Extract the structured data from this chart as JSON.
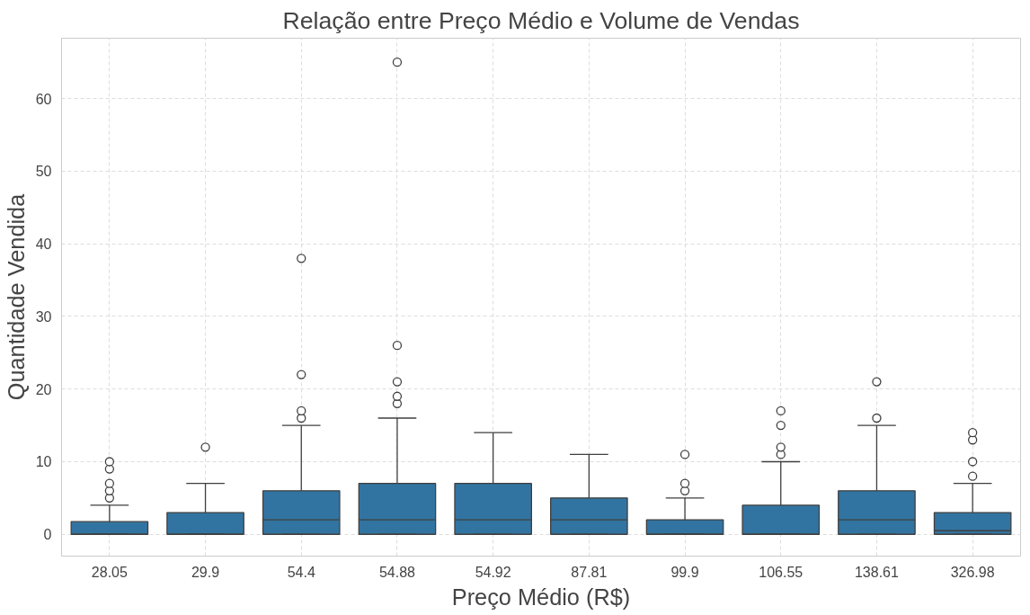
{
  "chart_data": {
    "type": "box",
    "title": "Relação entre Preço Médio e Volume de Vendas",
    "xlabel": "Preço Médio (R$)",
    "ylabel": "Quantidade Vendida",
    "categories": [
      "28.05",
      "29.9",
      "54.4",
      "54.88",
      "54.92",
      "87.81",
      "99.9",
      "106.55",
      "138.61",
      "326.98"
    ],
    "series": [
      {
        "color": "#3274a1",
        "boxes": [
          {
            "low": 0,
            "q1": 0,
            "median": 0,
            "q3": 1.75,
            "high": 4,
            "outliers": [
              5,
              6,
              7,
              9,
              10
            ]
          },
          {
            "low": 0,
            "q1": 0,
            "median": 0,
            "q3": 3,
            "high": 7,
            "outliers": [
              12
            ]
          },
          {
            "low": 0,
            "q1": 0,
            "median": 2,
            "q3": 6,
            "high": 15,
            "outliers": [
              16,
              17,
              22,
              38
            ]
          },
          {
            "low": 0,
            "q1": 0,
            "median": 2,
            "q3": 7,
            "high": 16,
            "outliers": [
              18,
              19,
              21,
              26,
              65
            ]
          },
          {
            "low": 0,
            "q1": 0,
            "median": 2,
            "q3": 7,
            "high": 14
          },
          {
            "low": 0,
            "q1": 0,
            "median": 2,
            "q3": 5,
            "high": 11
          },
          {
            "low": 0,
            "q1": 0,
            "median": 0,
            "q3": 2,
            "high": 5,
            "outliers": [
              6,
              7,
              11
            ]
          },
          {
            "low": 0,
            "q1": 0,
            "median": 0,
            "q3": 4,
            "high": 10,
            "outliers": [
              11,
              12,
              15,
              17
            ]
          },
          {
            "low": 0,
            "q1": 0,
            "median": 2,
            "q3": 6,
            "high": 15,
            "outliers": [
              16,
              21
            ]
          },
          {
            "low": 0,
            "q1": 0,
            "median": 0.5,
            "q3": 3,
            "high": 7,
            "outliers": [
              8,
              10,
              13,
              14
            ]
          }
        ]
      }
    ],
    "ylim": [
      -3,
      68.3
    ],
    "yticks": [
      0,
      10,
      20,
      30,
      40,
      50,
      60
    ],
    "grid": true
  }
}
